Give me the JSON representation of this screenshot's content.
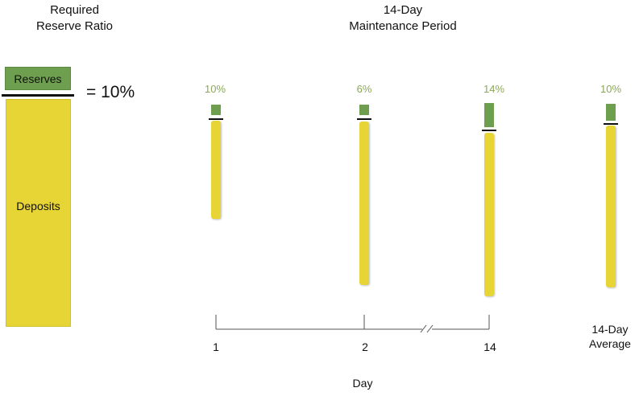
{
  "left_title": {
    "line1": "Required",
    "line2": "Reserve Ratio"
  },
  "right_title": {
    "line1": "14-Day",
    "line2": "Maintenance Period"
  },
  "reserves_label": "Reserves",
  "deposits_label": "Deposits",
  "ratio_text": "= 10%",
  "days": [
    {
      "label": "1",
      "percent_label": "10%",
      "reserve_ratio": 0.1
    },
    {
      "label": "2",
      "percent_label": "6%",
      "reserve_ratio": 0.06
    },
    {
      "label": "14",
      "percent_label": "14%",
      "reserve_ratio": 0.14
    }
  ],
  "average": {
    "line1": "14-Day",
    "line2": "Average",
    "percent_label": "10%",
    "reserve_ratio": 0.1
  },
  "x_axis_label": "Day",
  "colors": {
    "reserves": "#6e9f4f",
    "deposits": "#e7d435",
    "percent_text": "#8aa85a"
  }
}
